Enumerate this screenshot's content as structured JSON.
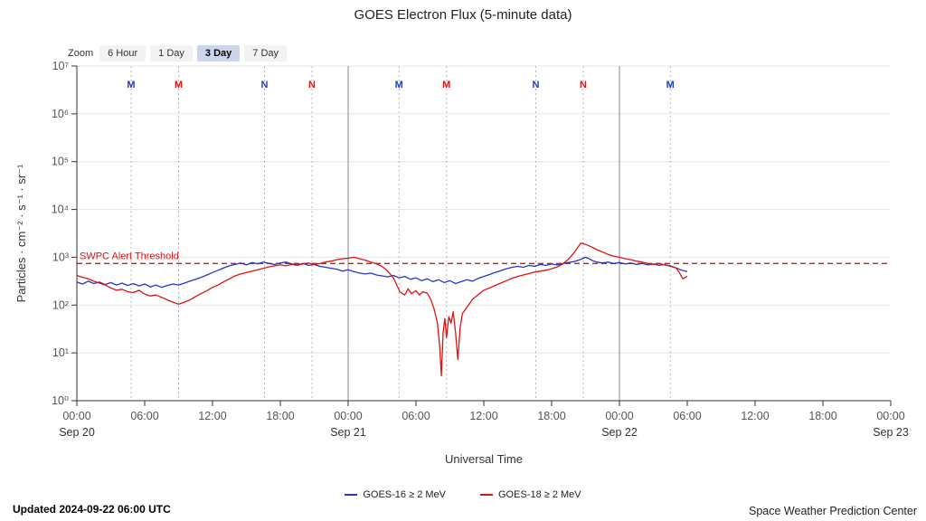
{
  "title": "GOES Electron Flux (5-minute data)",
  "zoom": {
    "label": "Zoom",
    "options": [
      {
        "label": "6 Hour",
        "selected": false
      },
      {
        "label": "1 Day",
        "selected": false
      },
      {
        "label": "3 Day",
        "selected": true
      },
      {
        "label": "7 Day",
        "selected": false
      }
    ]
  },
  "chart_data": {
    "type": "line",
    "title": "GOES Electron Flux (5-minute data)",
    "x_axis": {
      "label": "Universal Time",
      "range_hours": [
        0,
        72
      ],
      "start": "Sep 20 00:00 UT",
      "ticks": [
        {
          "hour": 0,
          "label": "00:00"
        },
        {
          "hour": 6,
          "label": "06:00"
        },
        {
          "hour": 12,
          "label": "12:00"
        },
        {
          "hour": 18,
          "label": "18:00"
        },
        {
          "hour": 24,
          "label": "00:00"
        },
        {
          "hour": 30,
          "label": "06:00"
        },
        {
          "hour": 36,
          "label": "12:00"
        },
        {
          "hour": 42,
          "label": "18:00"
        },
        {
          "hour": 48,
          "label": "00:00"
        },
        {
          "hour": 54,
          "label": "06:00"
        },
        {
          "hour": 60,
          "label": "12:00"
        },
        {
          "hour": 66,
          "label": "18:00"
        },
        {
          "hour": 72,
          "label": "00:00"
        }
      ],
      "date_labels": [
        {
          "hour": 0,
          "label": "Sep 20"
        },
        {
          "hour": 24,
          "label": "Sep 21"
        },
        {
          "hour": 48,
          "label": "Sep 22"
        },
        {
          "hour": 72,
          "label": "Sep 23"
        }
      ]
    },
    "y_axis": {
      "label": "Particles · cm⁻² · s⁻¹ · sr⁻¹",
      "scale": "log10",
      "log_range": [
        0,
        7
      ],
      "tick_labels": [
        "10⁰",
        "10¹",
        "10²",
        "10³",
        "10⁴",
        "10⁵",
        "10⁶",
        "10⁷"
      ]
    },
    "threshold": {
      "label": "SWPC Alert Threshold",
      "log_value": 2.87,
      "color": "#e01212"
    },
    "day_boundaries_hours": [
      24,
      48
    ],
    "satellite_markers": [
      {
        "hour": 4.8,
        "label": "M",
        "color": "#2439c2"
      },
      {
        "hour": 9.0,
        "label": "M",
        "color": "#e01212"
      },
      {
        "hour": 16.6,
        "label": "N",
        "color": "#2439c2"
      },
      {
        "hour": 20.8,
        "label": "N",
        "color": "#e01212"
      },
      {
        "hour": 28.5,
        "label": "M",
        "color": "#2439c2"
      },
      {
        "hour": 32.7,
        "label": "M",
        "color": "#e01212"
      },
      {
        "hour": 40.6,
        "label": "N",
        "color": "#2439c2"
      },
      {
        "hour": 44.8,
        "label": "N",
        "color": "#e01212"
      },
      {
        "hour": 52.5,
        "label": "M",
        "color": "#2439c2"
      }
    ],
    "series": [
      {
        "name": "GOES-16 ≥ 2 MeV",
        "color": "#2439c2",
        "points": [
          [
            0,
            2.48
          ],
          [
            0.5,
            2.44
          ],
          [
            1,
            2.5
          ],
          [
            1.5,
            2.45
          ],
          [
            2,
            2.48
          ],
          [
            2.5,
            2.43
          ],
          [
            3,
            2.47
          ],
          [
            3.5,
            2.42
          ],
          [
            4,
            2.46
          ],
          [
            4.5,
            2.41
          ],
          [
            5,
            2.45
          ],
          [
            5.5,
            2.4
          ],
          [
            6,
            2.44
          ],
          [
            6.5,
            2.38
          ],
          [
            7,
            2.42
          ],
          [
            7.5,
            2.37
          ],
          [
            8,
            2.41
          ],
          [
            8.5,
            2.44
          ],
          [
            9,
            2.42
          ],
          [
            9.5,
            2.46
          ],
          [
            10,
            2.5
          ],
          [
            10.5,
            2.54
          ],
          [
            11,
            2.58
          ],
          [
            11.5,
            2.63
          ],
          [
            12,
            2.68
          ],
          [
            12.5,
            2.73
          ],
          [
            13,
            2.78
          ],
          [
            13.5,
            2.82
          ],
          [
            14,
            2.85
          ],
          [
            14.5,
            2.88
          ],
          [
            15,
            2.84
          ],
          [
            15.5,
            2.89
          ],
          [
            16,
            2.86
          ],
          [
            16.5,
            2.9
          ],
          [
            17,
            2.87
          ],
          [
            17.5,
            2.85
          ],
          [
            18,
            2.88
          ],
          [
            18.5,
            2.9
          ],
          [
            19,
            2.86
          ],
          [
            19.5,
            2.84
          ],
          [
            20,
            2.87
          ],
          [
            20.5,
            2.83
          ],
          [
            21,
            2.85
          ],
          [
            21.5,
            2.81
          ],
          [
            22,
            2.79
          ],
          [
            22.5,
            2.77
          ],
          [
            23,
            2.75
          ],
          [
            23.5,
            2.71
          ],
          [
            24,
            2.74
          ],
          [
            24.5,
            2.7
          ],
          [
            25,
            2.67
          ],
          [
            25.5,
            2.65
          ],
          [
            26,
            2.67
          ],
          [
            26.5,
            2.63
          ],
          [
            27,
            2.61
          ],
          [
            27.5,
            2.59
          ],
          [
            28,
            2.62
          ],
          [
            28.5,
            2.57
          ],
          [
            29,
            2.6
          ],
          [
            29.5,
            2.54
          ],
          [
            30,
            2.57
          ],
          [
            30.5,
            2.51
          ],
          [
            31,
            2.55
          ],
          [
            31.5,
            2.49
          ],
          [
            32,
            2.53
          ],
          [
            32.5,
            2.47
          ],
          [
            33,
            2.51
          ],
          [
            33.5,
            2.45
          ],
          [
            34,
            2.49
          ],
          [
            34.5,
            2.53
          ],
          [
            35,
            2.5
          ],
          [
            35.5,
            2.56
          ],
          [
            36,
            2.6
          ],
          [
            36.5,
            2.64
          ],
          [
            37,
            2.68
          ],
          [
            37.5,
            2.72
          ],
          [
            38,
            2.76
          ],
          [
            38.5,
            2.79
          ],
          [
            39,
            2.81
          ],
          [
            39.5,
            2.79
          ],
          [
            40,
            2.83
          ],
          [
            40.5,
            2.81
          ],
          [
            41,
            2.85
          ],
          [
            41.5,
            2.83
          ],
          [
            42,
            2.86
          ],
          [
            42.5,
            2.84
          ],
          [
            43,
            2.87
          ],
          [
            43.5,
            2.89
          ],
          [
            44,
            2.91
          ],
          [
            44.5,
            2.95
          ],
          [
            45,
            3.0
          ],
          [
            45.3,
            2.97
          ],
          [
            45.6,
            2.93
          ],
          [
            46,
            2.9
          ],
          [
            46.5,
            2.88
          ],
          [
            47,
            2.9
          ],
          [
            47.5,
            2.87
          ],
          [
            48,
            2.89
          ],
          [
            48.5,
            2.86
          ],
          [
            49,
            2.88
          ],
          [
            49.5,
            2.85
          ],
          [
            50,
            2.87
          ],
          [
            50.5,
            2.84
          ],
          [
            51,
            2.86
          ],
          [
            51.5,
            2.83
          ],
          [
            52,
            2.85
          ],
          [
            52.5,
            2.81
          ],
          [
            53,
            2.78
          ],
          [
            53.5,
            2.73
          ],
          [
            54,
            2.7
          ]
        ]
      },
      {
        "name": "GOES-18 ≥ 2 MeV",
        "color": "#e01212",
        "points": [
          [
            0,
            2.62
          ],
          [
            0.5,
            2.58
          ],
          [
            1,
            2.55
          ],
          [
            1.5,
            2.5
          ],
          [
            2,
            2.46
          ],
          [
            2.5,
            2.42
          ],
          [
            3,
            2.36
          ],
          [
            3.5,
            2.31
          ],
          [
            4,
            2.33
          ],
          [
            4.5,
            2.28
          ],
          [
            5,
            2.26
          ],
          [
            5.5,
            2.31
          ],
          [
            6,
            2.23
          ],
          [
            6.5,
            2.19
          ],
          [
            7,
            2.21
          ],
          [
            7.5,
            2.16
          ],
          [
            8,
            2.11
          ],
          [
            8.5,
            2.06
          ],
          [
            9,
            2.02
          ],
          [
            9.5,
            2.06
          ],
          [
            10,
            2.11
          ],
          [
            10.5,
            2.18
          ],
          [
            11,
            2.24
          ],
          [
            11.5,
            2.3
          ],
          [
            12,
            2.37
          ],
          [
            12.5,
            2.42
          ],
          [
            13,
            2.49
          ],
          [
            13.5,
            2.55
          ],
          [
            14,
            2.61
          ],
          [
            14.5,
            2.65
          ],
          [
            15,
            2.68
          ],
          [
            15.5,
            2.71
          ],
          [
            16,
            2.74
          ],
          [
            16.5,
            2.77
          ],
          [
            17,
            2.8
          ],
          [
            17.5,
            2.82
          ],
          [
            18,
            2.84
          ],
          [
            18.5,
            2.82
          ],
          [
            19,
            2.85
          ],
          [
            19.5,
            2.83
          ],
          [
            20,
            2.86
          ],
          [
            20.5,
            2.88
          ],
          [
            21,
            2.85
          ],
          [
            21.5,
            2.87
          ],
          [
            22,
            2.9
          ],
          [
            22.5,
            2.92
          ],
          [
            23,
            2.95
          ],
          [
            23.5,
            2.97
          ],
          [
            24,
            2.98
          ],
          [
            24.5,
            3.0
          ],
          [
            25,
            2.97
          ],
          [
            25.5,
            2.94
          ],
          [
            26,
            2.9
          ],
          [
            26.5,
            2.86
          ],
          [
            27,
            2.81
          ],
          [
            27.5,
            2.71
          ],
          [
            28,
            2.57
          ],
          [
            28.3,
            2.42
          ],
          [
            28.6,
            2.27
          ],
          [
            29,
            2.21
          ],
          [
            29.3,
            2.34
          ],
          [
            29.6,
            2.24
          ],
          [
            30,
            2.3
          ],
          [
            30.3,
            2.21
          ],
          [
            30.6,
            2.28
          ],
          [
            31,
            2.25
          ],
          [
            31.3,
            2.12
          ],
          [
            31.6,
            1.92
          ],
          [
            31.9,
            1.62
          ],
          [
            32.1,
            1.12
          ],
          [
            32.25,
            0.52
          ],
          [
            32.4,
            1.42
          ],
          [
            32.55,
            1.72
          ],
          [
            32.7,
            1.32
          ],
          [
            32.9,
            1.76
          ],
          [
            33.1,
            1.62
          ],
          [
            33.3,
            1.86
          ],
          [
            33.5,
            1.42
          ],
          [
            33.7,
            0.86
          ],
          [
            33.9,
            1.52
          ],
          [
            34.1,
            1.82
          ],
          [
            34.4,
            1.92
          ],
          [
            34.7,
            2.02
          ],
          [
            35,
            2.12
          ],
          [
            35.5,
            2.22
          ],
          [
            36,
            2.31
          ],
          [
            36.5,
            2.36
          ],
          [
            37,
            2.41
          ],
          [
            37.5,
            2.46
          ],
          [
            38,
            2.51
          ],
          [
            38.5,
            2.56
          ],
          [
            39,
            2.6
          ],
          [
            39.5,
            2.63
          ],
          [
            40,
            2.66
          ],
          [
            40.5,
            2.69
          ],
          [
            41,
            2.71
          ],
          [
            41.5,
            2.73
          ],
          [
            42,
            2.76
          ],
          [
            42.5,
            2.8
          ],
          [
            43,
            2.86
          ],
          [
            43.5,
            2.96
          ],
          [
            44,
            3.1
          ],
          [
            44.3,
            3.2
          ],
          [
            44.6,
            3.3
          ],
          [
            45,
            3.27
          ],
          [
            45.5,
            3.22
          ],
          [
            46,
            3.16
          ],
          [
            46.5,
            3.11
          ],
          [
            47,
            3.06
          ],
          [
            47.5,
            3.02
          ],
          [
            48,
            3.0
          ],
          [
            48.5,
            2.97
          ],
          [
            49,
            2.95
          ],
          [
            49.5,
            2.92
          ],
          [
            50,
            2.9
          ],
          [
            50.5,
            2.87
          ],
          [
            51,
            2.85
          ],
          [
            51.5,
            2.87
          ],
          [
            52,
            2.84
          ],
          [
            52.5,
            2.82
          ],
          [
            53,
            2.78
          ],
          [
            53.3,
            2.68
          ],
          [
            53.6,
            2.55
          ],
          [
            54,
            2.6
          ]
        ]
      }
    ]
  },
  "legend": {
    "items": [
      {
        "label": "GOES-16 ≥ 2 MeV",
        "color": "#2439c2"
      },
      {
        "label": "GOES-18 ≥ 2 MeV",
        "color": "#e01212"
      }
    ]
  },
  "footer": {
    "updated": "Updated 2024-09-22 06:00 UTC",
    "source": "Space Weather Prediction Center"
  }
}
